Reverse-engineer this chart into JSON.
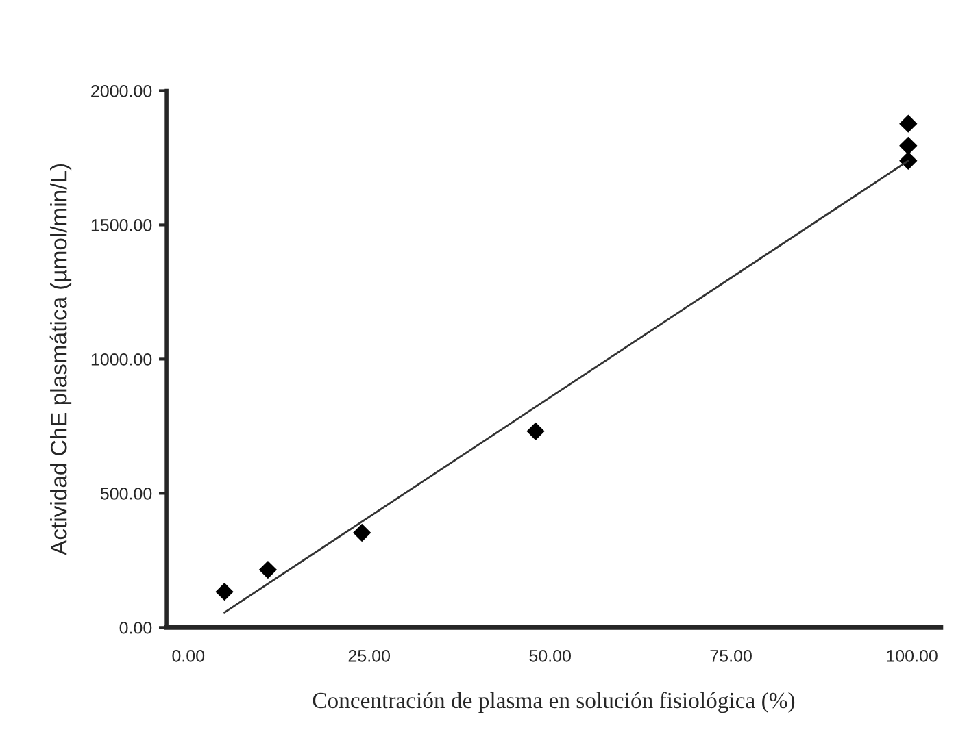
{
  "chart_data": {
    "type": "scatter",
    "xlabel": "Concentración de plasma en solución fisiológica (%)",
    "ylabel": "Actividad ChE plasmática (µmol/min/L)",
    "series": [
      {
        "color": "#000000",
        "marker": "diamond",
        "x": [
          5,
          11,
          24,
          48,
          99.5,
          99.5,
          99.5
        ],
        "values": [
          133,
          215,
          353,
          731,
          1877,
          1795,
          1739
        ]
      },
      {
        "type": "line",
        "color": "#333333",
        "x": [
          5,
          99.5
        ],
        "values": [
          56,
          1739
        ]
      }
    ],
    "xlim": [
      -3,
      104
    ],
    "ylim": [
      0,
      2000
    ],
    "xticks": [
      {
        "value": 0,
        "label": "0.00"
      },
      {
        "value": 25,
        "label": "25.00"
      },
      {
        "value": 50,
        "label": "50.00"
      },
      {
        "value": 75,
        "label": "75.00"
      },
      {
        "value": 100,
        "label": "100.00"
      }
    ],
    "yticks": [
      {
        "value": 0,
        "label": "0.00"
      },
      {
        "value": 500,
        "label": "500.00"
      },
      {
        "value": 1000,
        "label": "1000.00"
      },
      {
        "value": 1500,
        "label": "1500.00"
      },
      {
        "value": 2000,
        "label": "2000.00"
      }
    ],
    "grid": false,
    "legend": false
  }
}
